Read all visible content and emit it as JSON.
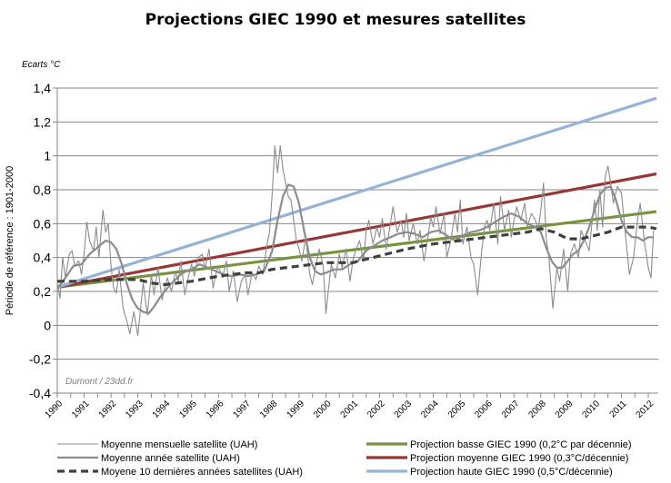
{
  "chart_data": {
    "type": "line",
    "title": "Projections GIEC 1990 et mesures satellites",
    "unit_label": "Ecarts °C",
    "ylabel": "Période de référence : 1901-2000",
    "xlabel": "",
    "credit": "Dumont / 23dd.fr",
    "ylim": [
      -0.4,
      1.4
    ],
    "xlim": [
      1990,
      2012.3
    ],
    "grid": true,
    "legend_position": "bottom",
    "y_ticks": [
      {
        "value": 1.4,
        "label": "1,4"
      },
      {
        "value": 1.2,
        "label": "1,2"
      },
      {
        "value": 1.0,
        "label": "1"
      },
      {
        "value": 0.8,
        "label": "0,8"
      },
      {
        "value": 0.6,
        "label": "0,6"
      },
      {
        "value": 0.4,
        "label": "0,4"
      },
      {
        "value": 0.2,
        "label": "0,2"
      },
      {
        "value": 0.0,
        "label": "0"
      },
      {
        "value": -0.2,
        "label": "-0,2"
      },
      {
        "value": -0.4,
        "label": "-0,4"
      }
    ],
    "x_ticks": [
      "1990",
      "1991",
      "1992",
      "1993",
      "1994",
      "1995",
      "1996",
      "1997",
      "1998",
      "1999",
      "2000",
      "2001",
      "2002",
      "2003",
      "2004",
      "2005",
      "2006",
      "2007",
      "2008",
      "2009",
      "2010",
      "2011",
      "2012"
    ],
    "series": [
      {
        "name": "Moyenne mensuelle satellite (UAH)",
        "color": "#8c8c8c",
        "style": "thin",
        "x": [
          1990.0,
          1990.1,
          1990.2,
          1990.3,
          1990.45,
          1990.55,
          1990.65,
          1990.8,
          1990.9,
          1991.0,
          1991.1,
          1991.2,
          1991.35,
          1991.45,
          1991.55,
          1991.7,
          1991.8,
          1991.9,
          1992.0,
          1992.1,
          1992.2,
          1992.3,
          1992.45,
          1992.6,
          1992.7,
          1992.85,
          1993.0,
          1993.1,
          1993.2,
          1993.35,
          1993.5,
          1993.6,
          1993.75,
          1993.9,
          1994.0,
          1994.1,
          1994.25,
          1994.4,
          1994.5,
          1994.6,
          1994.75,
          1994.9,
          1995.0,
          1995.1,
          1995.25,
          1995.4,
          1995.5,
          1995.65,
          1995.8,
          1995.9,
          1996.0,
          1996.15,
          1996.3,
          1996.4,
          1996.55,
          1996.7,
          1996.85,
          1997.0,
          1997.1,
          1997.25,
          1997.4,
          1997.5,
          1997.65,
          1997.8,
          1997.9,
          1998.0,
          1998.1,
          1998.2,
          1998.3,
          1998.4,
          1998.5,
          1998.6,
          1998.7,
          1998.8,
          1998.9,
          1999.0,
          1999.1,
          1999.25,
          1999.4,
          1999.5,
          1999.6,
          1999.75,
          1999.9,
          2000.0,
          2000.1,
          2000.2,
          2000.35,
          2000.5,
          2000.6,
          2000.75,
          2000.9,
          2001.0,
          2001.1,
          2001.25,
          2001.4,
          2001.5,
          2001.6,
          2001.75,
          2001.9,
          2002.0,
          2002.1,
          2002.25,
          2002.4,
          2002.5,
          2002.65,
          2002.8,
          2002.9,
          2003.0,
          2003.1,
          2003.25,
          2003.4,
          2003.5,
          2003.65,
          2003.8,
          2003.9,
          2004.0,
          2004.1,
          2004.25,
          2004.4,
          2004.5,
          2004.65,
          2004.8,
          2004.9,
          2005.0,
          2005.1,
          2005.25,
          2005.4,
          2005.5,
          2005.65,
          2005.8,
          2005.9,
          2006.0,
          2006.1,
          2006.25,
          2006.4,
          2006.5,
          2006.65,
          2006.8,
          2006.9,
          2007.0,
          2007.1,
          2007.25,
          2007.4,
          2007.5,
          2007.65,
          2007.8,
          2007.9,
          2008.0,
          2008.1,
          2008.2,
          2008.3,
          2008.45,
          2008.6,
          2008.7,
          2008.85,
          2009.0,
          2009.1,
          2009.25,
          2009.4,
          2009.5,
          2009.65,
          2009.8,
          2009.9,
          2010.0,
          2010.1,
          2010.2,
          2010.3,
          2010.4,
          2010.5,
          2010.6,
          2010.7,
          2010.85,
          2011.0,
          2011.1,
          2011.2,
          2011.3,
          2011.45,
          2011.6,
          2011.7,
          2011.85,
          2012.0,
          2012.1,
          2012.2
        ],
        "y": [
          0.25,
          0.16,
          0.4,
          0.28,
          0.42,
          0.44,
          0.35,
          0.38,
          0.3,
          0.42,
          0.61,
          0.5,
          0.44,
          0.58,
          0.4,
          0.68,
          0.55,
          0.6,
          0.35,
          0.22,
          0.19,
          0.33,
          0.1,
          0.02,
          -0.05,
          0.08,
          -0.06,
          0.1,
          0.25,
          0.06,
          0.3,
          0.18,
          0.34,
          0.15,
          0.22,
          0.28,
          0.2,
          0.32,
          0.26,
          0.38,
          0.18,
          0.3,
          0.36,
          0.29,
          0.4,
          0.42,
          0.33,
          0.45,
          0.22,
          0.3,
          0.35,
          0.28,
          0.38,
          0.2,
          0.32,
          0.14,
          0.26,
          0.3,
          0.18,
          0.31,
          0.27,
          0.35,
          0.3,
          0.47,
          0.55,
          0.78,
          1.06,
          0.9,
          1.06,
          0.92,
          0.84,
          0.76,
          0.74,
          0.62,
          0.5,
          0.45,
          0.38,
          0.52,
          0.3,
          0.24,
          0.33,
          0.45,
          0.35,
          0.07,
          0.22,
          0.36,
          0.28,
          0.42,
          0.34,
          0.45,
          0.26,
          0.38,
          0.44,
          0.5,
          0.38,
          0.56,
          0.62,
          0.48,
          0.58,
          0.52,
          0.63,
          0.45,
          0.6,
          0.7,
          0.55,
          0.62,
          0.52,
          0.66,
          0.5,
          0.6,
          0.48,
          0.56,
          0.38,
          0.52,
          0.64,
          0.58,
          0.7,
          0.54,
          0.66,
          0.4,
          0.5,
          0.66,
          0.55,
          0.74,
          0.48,
          0.58,
          0.4,
          0.36,
          0.18,
          0.44,
          0.58,
          0.62,
          0.56,
          0.72,
          0.48,
          0.76,
          0.56,
          0.68,
          0.52,
          0.62,
          0.7,
          0.62,
          0.72,
          0.58,
          0.66,
          0.62,
          0.56,
          0.68,
          0.84,
          0.52,
          0.4,
          0.1,
          0.34,
          0.26,
          0.45,
          0.2,
          0.42,
          0.48,
          0.4,
          0.56,
          0.5,
          0.44,
          0.6,
          0.74,
          0.56,
          0.8,
          0.58,
          0.88,
          0.94,
          0.84,
          0.72,
          0.82,
          0.78,
          0.62,
          0.45,
          0.3,
          0.4,
          0.62,
          0.72,
          0.5,
          0.34,
          0.28,
          0.56
        ]
      },
      {
        "name": "Moyenne année satellite (UAH)",
        "color": "#8c8c8c",
        "style": "medium",
        "x": [
          1990.0,
          1990.3,
          1990.6,
          1990.9,
          1991.2,
          1991.5,
          1991.8,
          1992.0,
          1992.2,
          1992.4,
          1992.6,
          1992.8,
          1993.0,
          1993.2,
          1993.4,
          1993.6,
          1993.8,
          1994.0,
          1994.2,
          1994.4,
          1994.6,
          1994.8,
          1995.0,
          1995.3,
          1995.6,
          1995.9,
          1996.2,
          1996.5,
          1996.8,
          1997.1,
          1997.4,
          1997.7,
          1998.0,
          1998.2,
          1998.4,
          1998.6,
          1998.8,
          1999.0,
          1999.2,
          1999.4,
          1999.6,
          1999.8,
          2000.0,
          2000.3,
          2000.6,
          2000.9,
          2001.2,
          2001.5,
          2001.8,
          2002.1,
          2002.4,
          2002.7,
          2003.0,
          2003.3,
          2003.6,
          2003.9,
          2004.2,
          2004.5,
          2004.8,
          2005.1,
          2005.4,
          2005.7,
          2006.0,
          2006.3,
          2006.6,
          2006.9,
          2007.2,
          2007.5,
          2007.8,
          2008.0,
          2008.2,
          2008.4,
          2008.6,
          2008.8,
          2009.0,
          2009.2,
          2009.4,
          2009.6,
          2009.8,
          2010.0,
          2010.2,
          2010.4,
          2010.6,
          2010.8,
          2011.0,
          2011.2,
          2011.4,
          2011.6,
          2011.8,
          2012.0,
          2012.2
        ],
        "y": [
          0.22,
          0.28,
          0.35,
          0.36,
          0.42,
          0.46,
          0.5,
          0.49,
          0.45,
          0.36,
          0.24,
          0.15,
          0.1,
          0.08,
          0.07,
          0.11,
          0.16,
          0.2,
          0.24,
          0.27,
          0.3,
          0.32,
          0.33,
          0.36,
          0.34,
          0.32,
          0.3,
          0.29,
          0.3,
          0.29,
          0.3,
          0.32,
          0.44,
          0.62,
          0.76,
          0.83,
          0.82,
          0.72,
          0.55,
          0.4,
          0.32,
          0.3,
          0.31,
          0.33,
          0.33,
          0.36,
          0.38,
          0.44,
          0.47,
          0.5,
          0.52,
          0.54,
          0.55,
          0.54,
          0.52,
          0.55,
          0.56,
          0.53,
          0.5,
          0.53,
          0.55,
          0.56,
          0.58,
          0.61,
          0.64,
          0.66,
          0.64,
          0.6,
          0.58,
          0.55,
          0.46,
          0.38,
          0.34,
          0.34,
          0.38,
          0.42,
          0.44,
          0.5,
          0.58,
          0.68,
          0.77,
          0.81,
          0.82,
          0.74,
          0.62,
          0.55,
          0.52,
          0.52,
          0.5,
          0.52,
          0.52
        ]
      },
      {
        "name": "Moyene 10 dernières années satellites (UAH)",
        "color": "#404040",
        "style": "dashed",
        "x": [
          1990.0,
          1991.0,
          1992.0,
          1993.0,
          1993.5,
          1994.0,
          1995.0,
          1996.0,
          1997.0,
          1997.5,
          1998.0,
          1999.0,
          2000.0,
          2000.5,
          2001.0,
          2002.0,
          2003.0,
          2004.0,
          2005.0,
          2006.0,
          2007.0,
          2007.5,
          2008.0,
          2008.5,
          2009.0,
          2009.5,
          2010.0,
          2010.5,
          2011.0,
          2011.5,
          2012.0,
          2012.3
        ],
        "y": [
          0.26,
          0.26,
          0.27,
          0.27,
          0.25,
          0.24,
          0.26,
          0.29,
          0.31,
          0.31,
          0.33,
          0.35,
          0.37,
          0.37,
          0.37,
          0.41,
          0.45,
          0.48,
          0.5,
          0.52,
          0.54,
          0.55,
          0.57,
          0.55,
          0.51,
          0.51,
          0.53,
          0.55,
          0.58,
          0.58,
          0.58,
          0.57
        ]
      },
      {
        "name": "Projection basse GIEC 1990 (0,2°C par décennie)",
        "color": "#77933c",
        "style": "thick",
        "x": [
          1990.0,
          2012.3
        ],
        "y": [
          0.225,
          0.671
        ]
      },
      {
        "name": "Projection moyenne GIEC 1990 (0,3°C/décennie)",
        "color": "#953735",
        "style": "thick",
        "x": [
          1990.0,
          2012.3
        ],
        "y": [
          0.225,
          0.894
        ]
      },
      {
        "name": "Projection haute GIEC 1990 (0,5°C/décennie)",
        "color": "#95b3d7",
        "style": "thick",
        "x": [
          1990.0,
          2012.3
        ],
        "y": [
          0.225,
          1.34
        ]
      }
    ],
    "legend": {
      "left": [
        0,
        1,
        2
      ],
      "right": [
        3,
        4,
        5
      ]
    }
  }
}
